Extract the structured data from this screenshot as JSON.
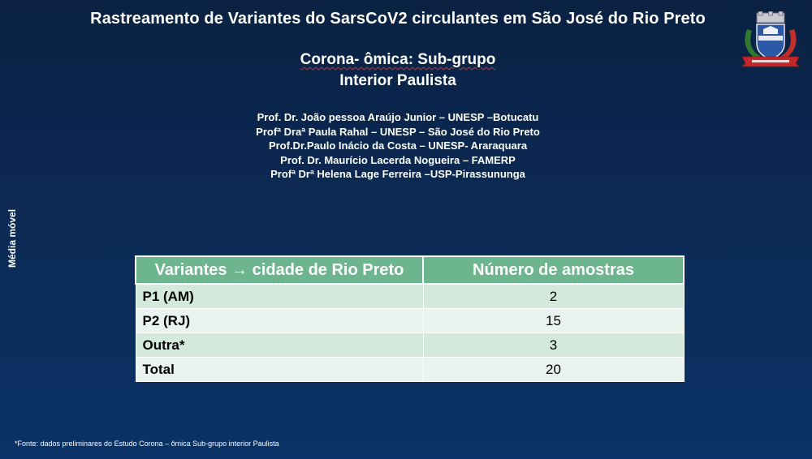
{
  "header": {
    "title": "Rastreamento de Variantes do SarsCoV2 circulantes em São José do Rio Preto",
    "subtitle_line1": "Corona- ômica: Sub-grupo",
    "subtitle_line2": "Interior Paulista"
  },
  "authors": [
    "Prof. Dr. João pessoa Araújo Junior – UNESP –Botucatu",
    "Profª Draª Paula Rahal – UNESP – São José do Rio Preto",
    "Prof.Dr.Paulo Inácio da Costa – UNESP- Araraquara",
    "Prof. Dr. Maurício Lacerda Nogueira – FAMERP",
    "Profª Drª Helena Lage Ferreira –USP-Pirassununga"
  ],
  "side_label": "Média móvel",
  "table": {
    "headers": [
      "Variantes → cidade de Rio Preto",
      "Número de amostras"
    ],
    "rows": [
      {
        "variant": "P1 (AM)",
        "count": "2"
      },
      {
        "variant": "P2 (RJ)",
        "count": "15"
      },
      {
        "variant": "Outra*",
        "count": "3"
      },
      {
        "variant": "Total",
        "count": "20"
      }
    ]
  },
  "footnote": "*Fonte: dados preliminares do Estudo Corona – ômica Sub-grupo interior Paulista",
  "colors": {
    "background_top": "#0a2142",
    "background_bottom": "#0b3266",
    "table_header": "#6cb58f",
    "table_row_odd": "#d3e9dc",
    "table_row_even": "#eaf4ee"
  },
  "icons": {
    "logo": "city-coat-of-arms-icon"
  }
}
